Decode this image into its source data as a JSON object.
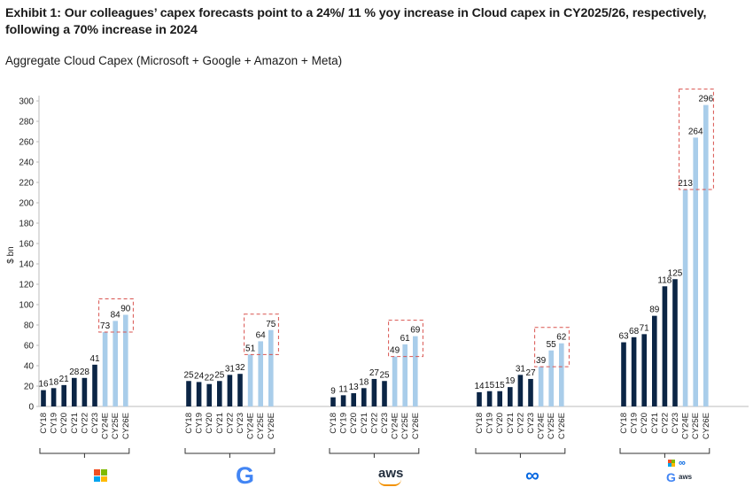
{
  "title": "Exhibit 1: Our colleagues’ capex forecasts point to a 24%/ 11 % yoy increase in Cloud capex in CY2025/26, respectively, following a 70% increase in 2024",
  "subtitle": "Aggregate Cloud Capex (Microsoft + Google + Amazon + Meta)",
  "chart_data": {
    "type": "bar",
    "ylabel": "$ bn",
    "ylim": [
      0,
      300
    ],
    "yticks": [
      0,
      20,
      40,
      60,
      80,
      100,
      120,
      140,
      160,
      180,
      200,
      220,
      240,
      260,
      280,
      300
    ],
    "categories": [
      "CY18",
      "CY19",
      "CY20",
      "CY21",
      "CY22",
      "CY23",
      "CY24E",
      "CY25E",
      "CY26E"
    ],
    "colors": {
      "actual": "#0b2545",
      "estimate": "#a9cdea",
      "highlight_box": "#d9534f"
    },
    "groups": [
      {
        "name": "microsoft-logo",
        "values": [
          16,
          18,
          21,
          28,
          28,
          41,
          73,
          84,
          90
        ]
      },
      {
        "name": "google-logo",
        "values": [
          25,
          24,
          22,
          25,
          31,
          32,
          51,
          64,
          75
        ]
      },
      {
        "name": "aws-logo",
        "values": [
          9,
          11,
          13,
          18,
          27,
          25,
          49,
          61,
          69
        ]
      },
      {
        "name": "meta-logo",
        "values": [
          14,
          15,
          15,
          19,
          31,
          27,
          39,
          55,
          62
        ]
      },
      {
        "name": "combined-logos",
        "values": [
          63,
          68,
          71,
          89,
          118,
          125,
          213,
          264,
          296
        ]
      }
    ]
  },
  "logos": {
    "google": "G",
    "aws": "aws",
    "meta": "∞"
  }
}
